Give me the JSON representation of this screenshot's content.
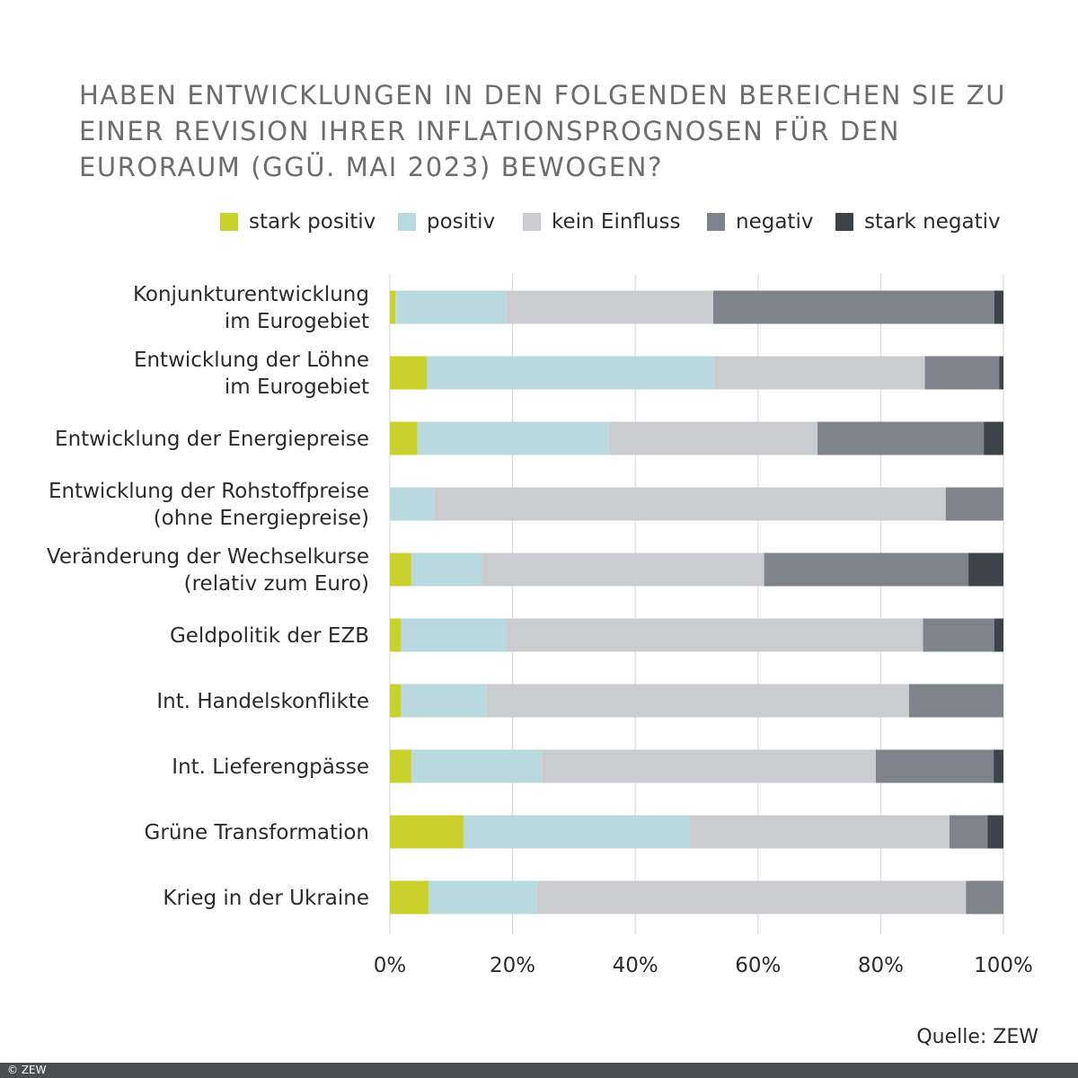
{
  "chart_data": {
    "type": "bar",
    "orientation": "horizontal",
    "stacked": true,
    "title": "Haben Entwicklungen in den folgenden Bereichen Sie zu einer Revision Ihrer Inflationsprognosen für den Euroraum (ggü. Mai 2023) bewogen?",
    "categories": [
      [
        "Konjunkturentwicklung",
        "im Eurogebiet"
      ],
      [
        "Entwicklung der Löhne",
        "im Eurogebiet"
      ],
      [
        "Entwicklung der Energiepreise"
      ],
      [
        "Entwicklung der Rohstoffpreise",
        "(ohne Energiepreise)"
      ],
      [
        "Veränderung der Wechselkurse",
        "(relativ zum Euro)"
      ],
      [
        "Geldpolitik der EZB"
      ],
      [
        "Int. Handelskonflikte"
      ],
      [
        "Int. Lieferengpässe"
      ],
      [
        "Grüne Transformation"
      ],
      [
        "Krieg in der Ukraine"
      ]
    ],
    "series": [
      {
        "name": "stark positiv",
        "color": "#c8d22b",
        "values": [
          0.9,
          6.0,
          4.5,
          0.0,
          3.5,
          1.8,
          1.8,
          3.5,
          12.0,
          6.3
        ]
      },
      {
        "name": "positiv",
        "color": "#b8d9de",
        "values": [
          18.1,
          46.8,
          31.2,
          7.2,
          11.5,
          17.1,
          13.9,
          21.2,
          36.9,
          17.7
        ]
      },
      {
        "name": "kein Einfluss",
        "color": "#cbcccf",
        "values": [
          33.7,
          34.4,
          34.0,
          83.4,
          46.0,
          68.0,
          68.9,
          54.5,
          42.3,
          69.9
        ]
      },
      {
        "name": "negativ",
        "color": "#7f838b",
        "values": [
          45.8,
          12.1,
          27.1,
          9.4,
          33.3,
          11.6,
          15.4,
          19.2,
          6.2,
          6.1
        ]
      },
      {
        "name": "stark negativ",
        "color": "#3e434a",
        "values": [
          1.5,
          0.7,
          3.2,
          0.0,
          5.7,
          1.5,
          0.0,
          1.6,
          2.6,
          0.0
        ]
      }
    ],
    "xlim": [
      0,
      100
    ],
    "xticks": [
      "0%",
      "20%",
      "40%",
      "60%",
      "80%",
      "100%"
    ],
    "xlabel": "",
    "ylabel": "",
    "grid": true,
    "legend_position": "top"
  },
  "source": "Quelle: ZEW",
  "copyright": "© ZEW"
}
